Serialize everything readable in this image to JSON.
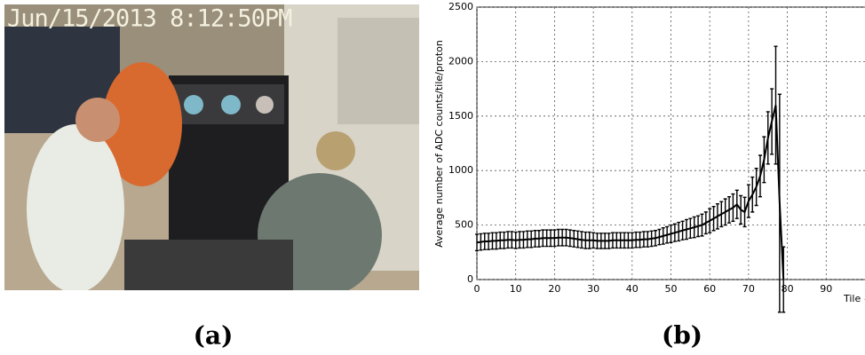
{
  "photo": {
    "timestamp": "Jun/15/2013 8:12:50PM",
    "caption": "(a)"
  },
  "chart_data": {
    "type": "errorline",
    "caption": "(b)",
    "y_label": "Average number of ADC counts/tile/proton",
    "x_label": "Tile #",
    "x": [
      0,
      1,
      2,
      3,
      4,
      5,
      6,
      7,
      8,
      9,
      10,
      11,
      12,
      13,
      14,
      15,
      16,
      17,
      18,
      19,
      20,
      21,
      22,
      23,
      24,
      25,
      26,
      27,
      28,
      29,
      30,
      31,
      32,
      33,
      34,
      35,
      36,
      37,
      38,
      39,
      40,
      41,
      42,
      43,
      44,
      45,
      46,
      47,
      48,
      49,
      50,
      51,
      52,
      53,
      54,
      55,
      56,
      57,
      58,
      59,
      60,
      61,
      62,
      63,
      64,
      65,
      66,
      67,
      68,
      69,
      70,
      71,
      72,
      73,
      74,
      75,
      76,
      77,
      78,
      79
    ],
    "values": [
      340,
      345,
      350,
      350,
      355,
      355,
      360,
      360,
      365,
      365,
      360,
      365,
      365,
      370,
      370,
      375,
      375,
      380,
      380,
      380,
      380,
      385,
      385,
      385,
      380,
      375,
      370,
      365,
      360,
      360,
      360,
      355,
      355,
      355,
      355,
      360,
      360,
      360,
      360,
      360,
      360,
      365,
      365,
      370,
      370,
      375,
      380,
      390,
      400,
      410,
      420,
      430,
      440,
      450,
      460,
      470,
      480,
      490,
      500,
      520,
      540,
      560,
      580,
      600,
      620,
      640,
      660,
      690,
      640,
      620,
      720,
      780,
      850,
      950,
      1100,
      1300,
      1450,
      1600,
      700,
      0
    ],
    "errors": [
      75,
      75,
      75,
      75,
      75,
      75,
      75,
      75,
      75,
      75,
      75,
      75,
      75,
      75,
      75,
      75,
      75,
      75,
      75,
      75,
      75,
      75,
      75,
      75,
      75,
      75,
      75,
      75,
      75,
      75,
      70,
      70,
      70,
      70,
      70,
      70,
      70,
      70,
      70,
      70,
      70,
      70,
      70,
      70,
      70,
      70,
      70,
      70,
      75,
      75,
      80,
      80,
      85,
      85,
      90,
      90,
      95,
      95,
      100,
      100,
      110,
      110,
      115,
      115,
      120,
      120,
      125,
      130,
      130,
      135,
      150,
      160,
      170,
      190,
      210,
      240,
      300,
      540,
      1000,
      300
    ],
    "color": "#000000",
    "xlim": [
      0,
      100
    ],
    "ylim": [
      0,
      2500
    ],
    "xticks": [
      0,
      10,
      20,
      30,
      40,
      50,
      60,
      70,
      80,
      90
    ],
    "yticks": [
      0,
      500,
      1000,
      1500,
      2000,
      2500
    ],
    "grid": true
  }
}
